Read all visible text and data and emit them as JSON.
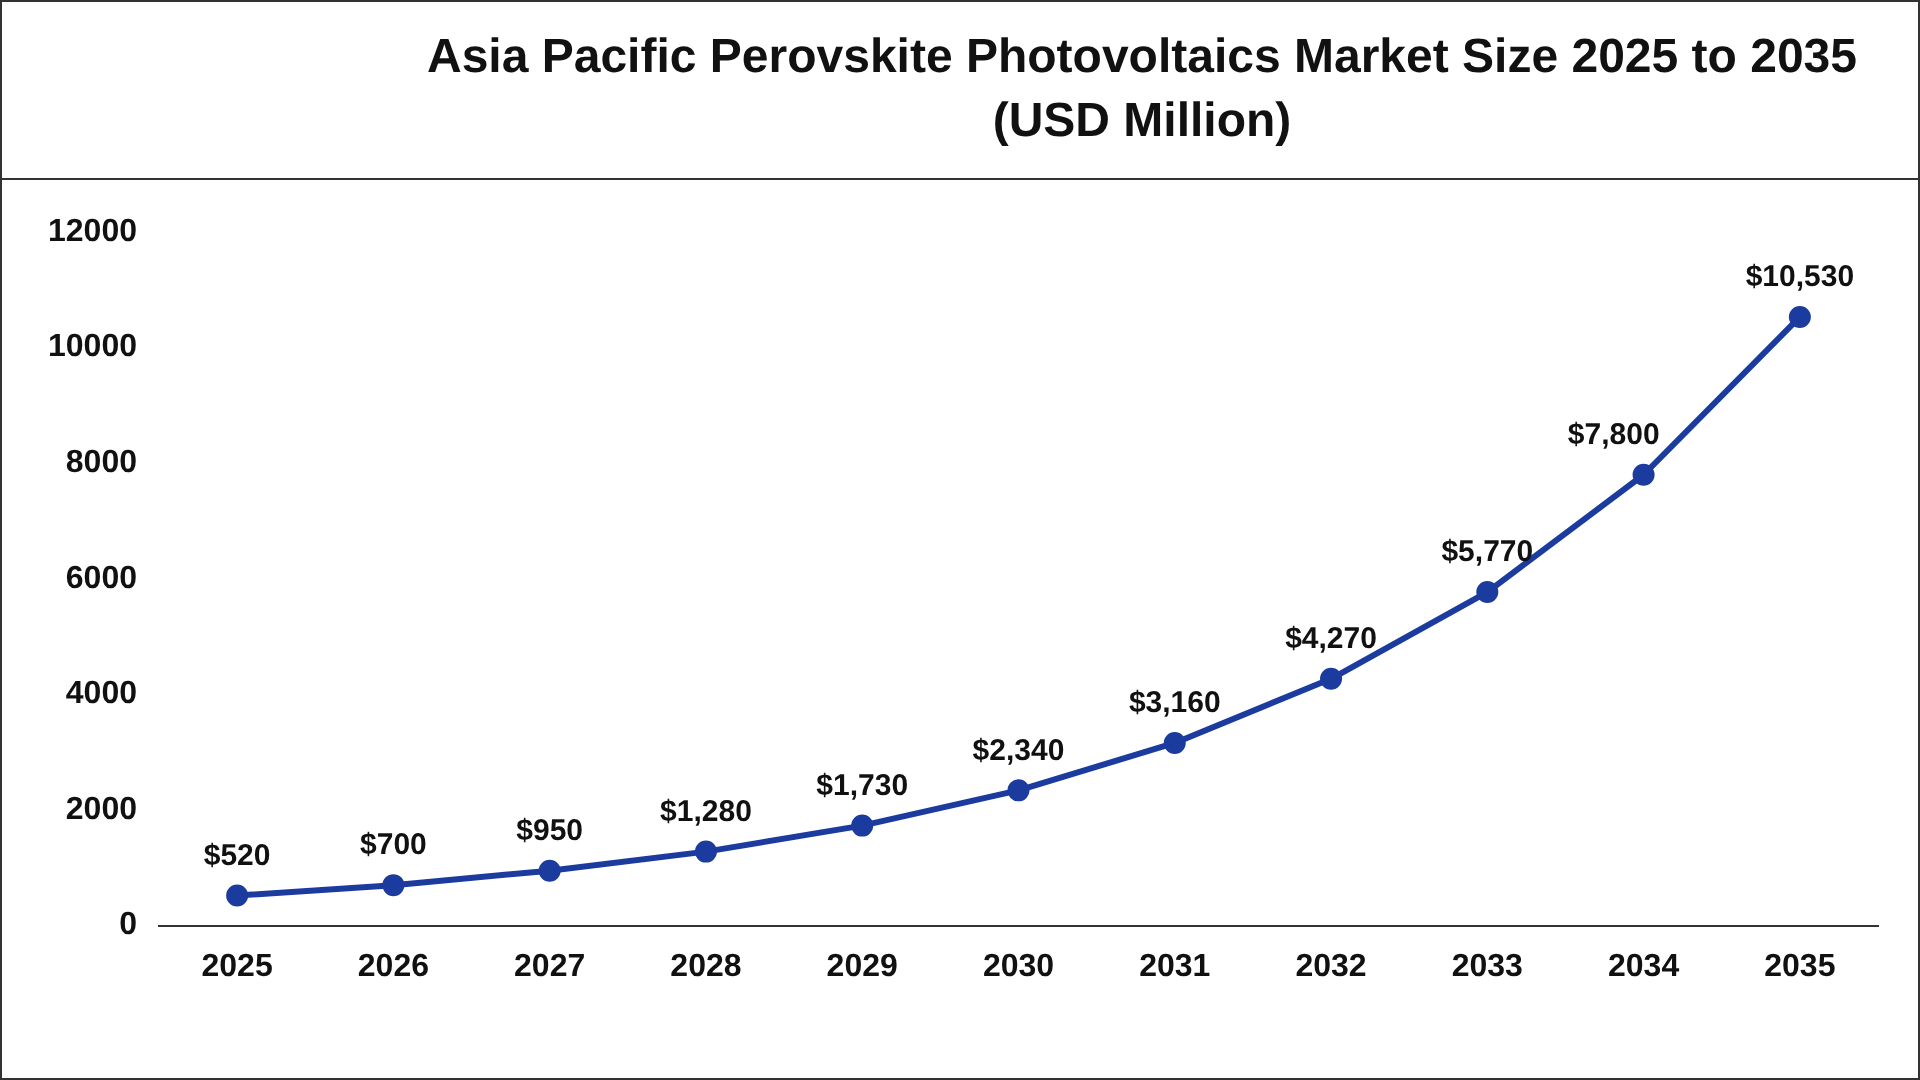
{
  "chart_data": {
    "type": "line",
    "title": "Asia Pacific Perovskite Photovoltaics Market Size 2025 to 2035 (USD Million)",
    "categories": [
      "2025",
      "2026",
      "2027",
      "2028",
      "2029",
      "2030",
      "2031",
      "2032",
      "2033",
      "2034",
      "2035"
    ],
    "series": [
      {
        "color": "#1b3c9e",
        "values": [
          520,
          700,
          950,
          1280,
          1730,
          2340,
          3160,
          4270,
          5770,
          7800,
          10530
        ],
        "value_labels": [
          "$520",
          "$700",
          "$950",
          "$1,280",
          "$1,730",
          "$2,340",
          "$3,160",
          "$4,270",
          "$5,770",
          "$7,800",
          "$10,530"
        ]
      }
    ],
    "ylim": [
      0,
      12000
    ],
    "yticks": [
      0,
      2000,
      4000,
      6000,
      8000,
      10000,
      12000
    ],
    "grid": false,
    "legend": false,
    "marker": "circle",
    "line_style": "solid"
  }
}
